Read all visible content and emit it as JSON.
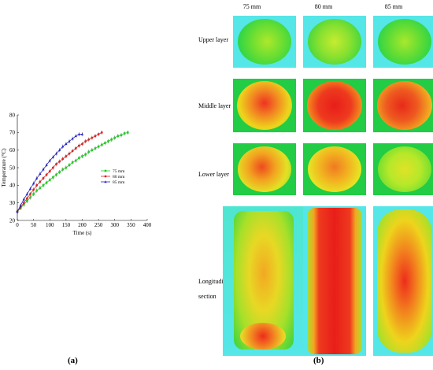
{
  "panel_a": {
    "label": "(a)",
    "chart_data": {
      "type": "line",
      "xlabel": "Time (s)",
      "ylabel": "Temperature (°C)",
      "xlim": [
        0,
        400
      ],
      "ylim": [
        20,
        80
      ],
      "xticks": [
        "0",
        "50",
        "100",
        "150",
        "200",
        "250",
        "300",
        "350",
        "400"
      ],
      "yticks": [
        "20",
        "30",
        "40",
        "50",
        "60",
        "70",
        "80"
      ],
      "grid": false,
      "legend_position": "right-middle",
      "series": [
        {
          "name": "75 mm",
          "color": "#22cc22",
          "marker": "square",
          "x": [
            0,
            10,
            20,
            30,
            40,
            50,
            60,
            70,
            80,
            90,
            100,
            110,
            120,
            130,
            140,
            150,
            160,
            170,
            180,
            190,
            200,
            210,
            220,
            230,
            240,
            250,
            260,
            270,
            280,
            290,
            300,
            310,
            320,
            330,
            340
          ],
          "y": [
            25,
            27,
            29,
            31,
            33,
            35,
            37,
            38.5,
            40,
            41.5,
            43,
            44.5,
            46,
            47.5,
            49,
            50,
            51.5,
            53,
            54,
            55.5,
            56.5,
            57.5,
            59,
            60,
            61,
            62,
            63,
            64,
            65,
            66,
            67,
            68,
            68.5,
            69.5,
            70
          ]
        },
        {
          "name": "80 mm",
          "color": "#dd2222",
          "marker": "circle",
          "x": [
            0,
            10,
            20,
            30,
            40,
            50,
            60,
            70,
            80,
            90,
            100,
            110,
            120,
            130,
            140,
            150,
            160,
            170,
            180,
            190,
            200,
            210,
            220,
            230,
            240,
            250,
            260
          ],
          "y": [
            25,
            27.5,
            30,
            32.5,
            35,
            37.5,
            40,
            42,
            44,
            46,
            48,
            50,
            52,
            53.5,
            55,
            56.5,
            58,
            59.5,
            61,
            62.5,
            63.5,
            65,
            66,
            67,
            68,
            69,
            70
          ]
        },
        {
          "name": "85 mm",
          "color": "#2222cc",
          "marker": "triangle",
          "x": [
            0,
            10,
            20,
            30,
            40,
            50,
            60,
            70,
            80,
            90,
            100,
            110,
            120,
            130,
            140,
            150,
            160,
            170,
            180,
            190,
            200
          ],
          "y": [
            25,
            28.5,
            32,
            35,
            38,
            41,
            44,
            46.5,
            49,
            51.5,
            54,
            56,
            58,
            60,
            62,
            63.5,
            65,
            66.5,
            68,
            69,
            69
          ]
        }
      ]
    }
  },
  "panel_b": {
    "label": "(b)",
    "columns": [
      "75 mm",
      "80 mm",
      "85 mm"
    ],
    "rows": [
      "Upper layer",
      "Middle layer",
      "Lower layer",
      "Longitudinal",
      "section"
    ]
  },
  "colors": {
    "cyan_bg": "#55e6e8",
    "green_bg": "#22cc44",
    "hot": "#ee2222"
  }
}
